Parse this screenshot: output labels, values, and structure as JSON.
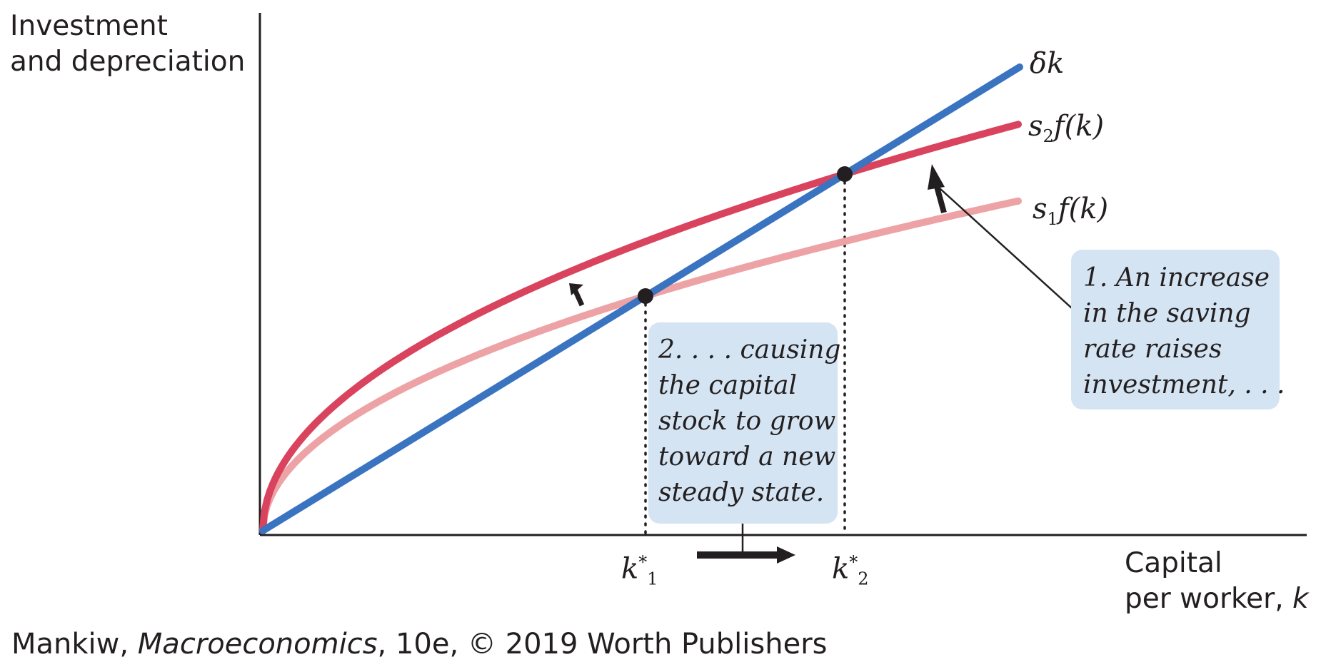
{
  "y_axis": {
    "title_line1": "Investment",
    "title_line2": "and depreciation"
  },
  "x_axis": {
    "title_line1": "Capital",
    "title_line2_prefix": "per worker, ",
    "title_line2_var": "k"
  },
  "curves": {
    "delta_k": {
      "label": "δk",
      "color": "#3a74c1"
    },
    "s2fk": {
      "label_s": "s",
      "label_sub": "2",
      "label_rest": "f(k)",
      "color": "#d9435e"
    },
    "s1fk": {
      "label_s": "s",
      "label_sub": "1",
      "label_rest": "f(k)",
      "color": "#eda3a5"
    }
  },
  "steady_states": {
    "k1": {
      "base": "k",
      "sup": "*",
      "sub": "1"
    },
    "k2": {
      "base": "k",
      "sup": "*",
      "sub": "2"
    }
  },
  "callouts": {
    "saving": {
      "lines": [
        "1. An increase",
        "in the saving",
        "rate raises",
        "investment, . . ."
      ]
    },
    "capital": {
      "lines": [
        "2. . . . causing",
        "the capital",
        "stock to grow",
        "toward a new",
        "steady state."
      ]
    }
  },
  "source": {
    "author": "Mankiw, ",
    "title": "Macroeconomics",
    "rest": ", 10e, © 2019 Worth Publishers"
  },
  "colors": {
    "callout_bg": "#d4e4f3",
    "ink": "#231f20"
  }
}
